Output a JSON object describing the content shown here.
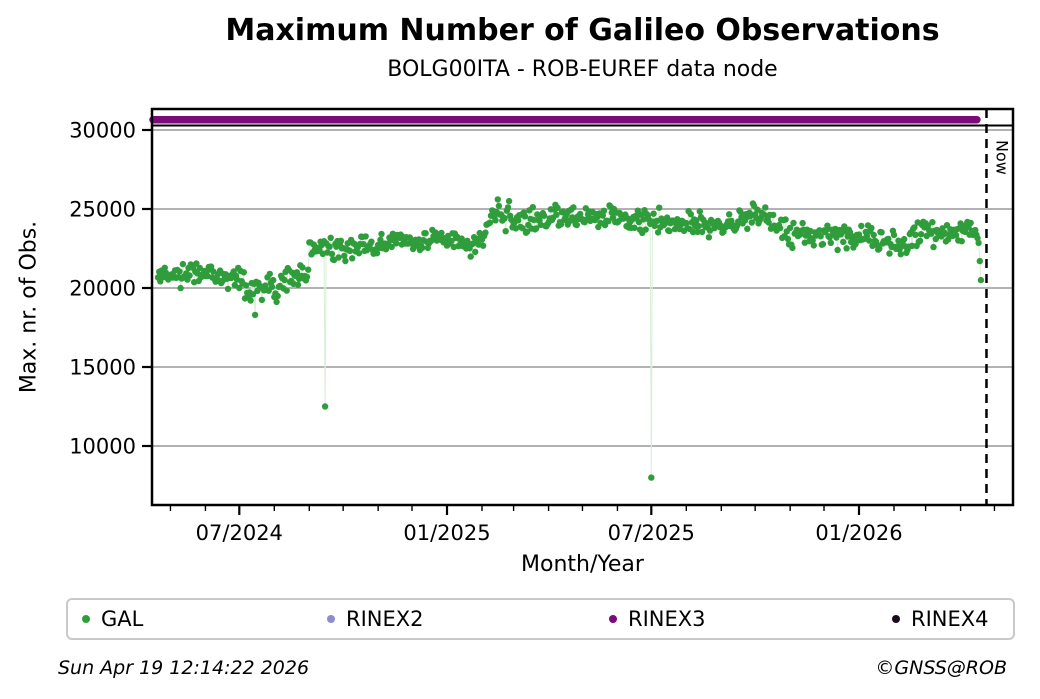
{
  "chart_data": {
    "type": "scatter",
    "title": "Maximum Number of Galileo Observations",
    "subtitle": "BOLG00ITA - ROB-EUREF data node",
    "xlabel": "Month/Year",
    "ylabel": "Max. nr. of Obs.",
    "grid": "horizontal",
    "legend_position": "bottom",
    "x_range": [
      "2024-04-15",
      "2026-05-17"
    ],
    "ylim": [
      6265,
      31330
    ],
    "y_ticks": [
      30000,
      25000,
      20000,
      15000,
      10000
    ],
    "x_major_ticks": [
      {
        "label": "07/2024",
        "date": "2024-07-01"
      },
      {
        "label": "01/2025",
        "date": "2025-01-01"
      },
      {
        "label": "07/2025",
        "date": "2025-07-01"
      },
      {
        "label": "01/2026",
        "date": "2026-01-01"
      }
    ],
    "x_minor_tick_unit": "month",
    "now_marker": {
      "label": "Now",
      "date": "2026-04-19T12:14:22"
    },
    "series": [
      {
        "name": "GAL",
        "color": "#2f9d3b",
        "marker": "dot",
        "cadence": "daily",
        "anchors": [
          [
            "2024-04-20",
            20700,
            800
          ],
          [
            "2024-05-15",
            20900,
            850
          ],
          [
            "2024-06-15",
            20800,
            850
          ],
          [
            "2024-07-08",
            20300,
            950
          ],
          [
            "2024-07-20",
            19900,
            950
          ],
          [
            "2024-08-08",
            20300,
            850
          ],
          [
            "2024-08-31",
            20800,
            700
          ],
          [
            "2024-09-01",
            22800,
            550
          ],
          [
            "2024-09-20",
            22500,
            650
          ],
          [
            "2024-10-10",
            22400,
            700
          ],
          [
            "2024-11-01",
            22800,
            600
          ],
          [
            "2024-12-01",
            23000,
            600
          ],
          [
            "2025-01-01",
            22900,
            650
          ],
          [
            "2025-01-26",
            22600,
            700
          ],
          [
            "2025-02-04",
            23200,
            800
          ],
          [
            "2025-02-10",
            24900,
            900
          ],
          [
            "2025-03-01",
            24300,
            900
          ],
          [
            "2025-04-01",
            24400,
            800
          ],
          [
            "2025-05-01",
            24500,
            750
          ],
          [
            "2025-06-01",
            24400,
            750
          ],
          [
            "2025-07-01",
            24200,
            800
          ],
          [
            "2025-08-01",
            24300,
            700
          ],
          [
            "2025-09-01",
            23900,
            800
          ],
          [
            "2025-10-01",
            24700,
            650
          ],
          [
            "2025-11-01",
            23400,
            800
          ],
          [
            "2025-12-01",
            23200,
            700
          ],
          [
            "2026-01-01",
            23300,
            750
          ],
          [
            "2026-02-01",
            22800,
            850
          ],
          [
            "2026-03-01",
            23400,
            800
          ],
          [
            "2026-04-10",
            23700,
            600
          ],
          [
            "2026-04-19",
            23400,
            600
          ]
        ],
        "outliers": [
          [
            "2024-07-15",
            18300
          ],
          [
            "2024-09-15",
            12500
          ],
          [
            "2025-07-01",
            8000
          ],
          [
            "2026-04-18",
            21700
          ],
          [
            "2026-04-19",
            20500
          ]
        ]
      },
      {
        "name": "RINEX2",
        "color": "#8c8cce",
        "marker": "dot",
        "visible_points": "none"
      },
      {
        "name": "RINEX3",
        "color": "#7b0a7b",
        "marker": "dot",
        "band_value": 30650,
        "band_span": [
          "2024-04-15",
          "2026-04-19"
        ]
      },
      {
        "name": "RINEX4",
        "color": "#190b19",
        "marker": "dot",
        "visible_points": "none"
      }
    ]
  },
  "footer": {
    "timestamp": "Sun Apr 19 12:14:22 2026",
    "credit": "©GNSS@ROB"
  },
  "colors": {
    "gridline": "#b2b2b2",
    "axis": "#000000",
    "legend_border": "#c9c9c9",
    "connector": "#d8eed8"
  }
}
